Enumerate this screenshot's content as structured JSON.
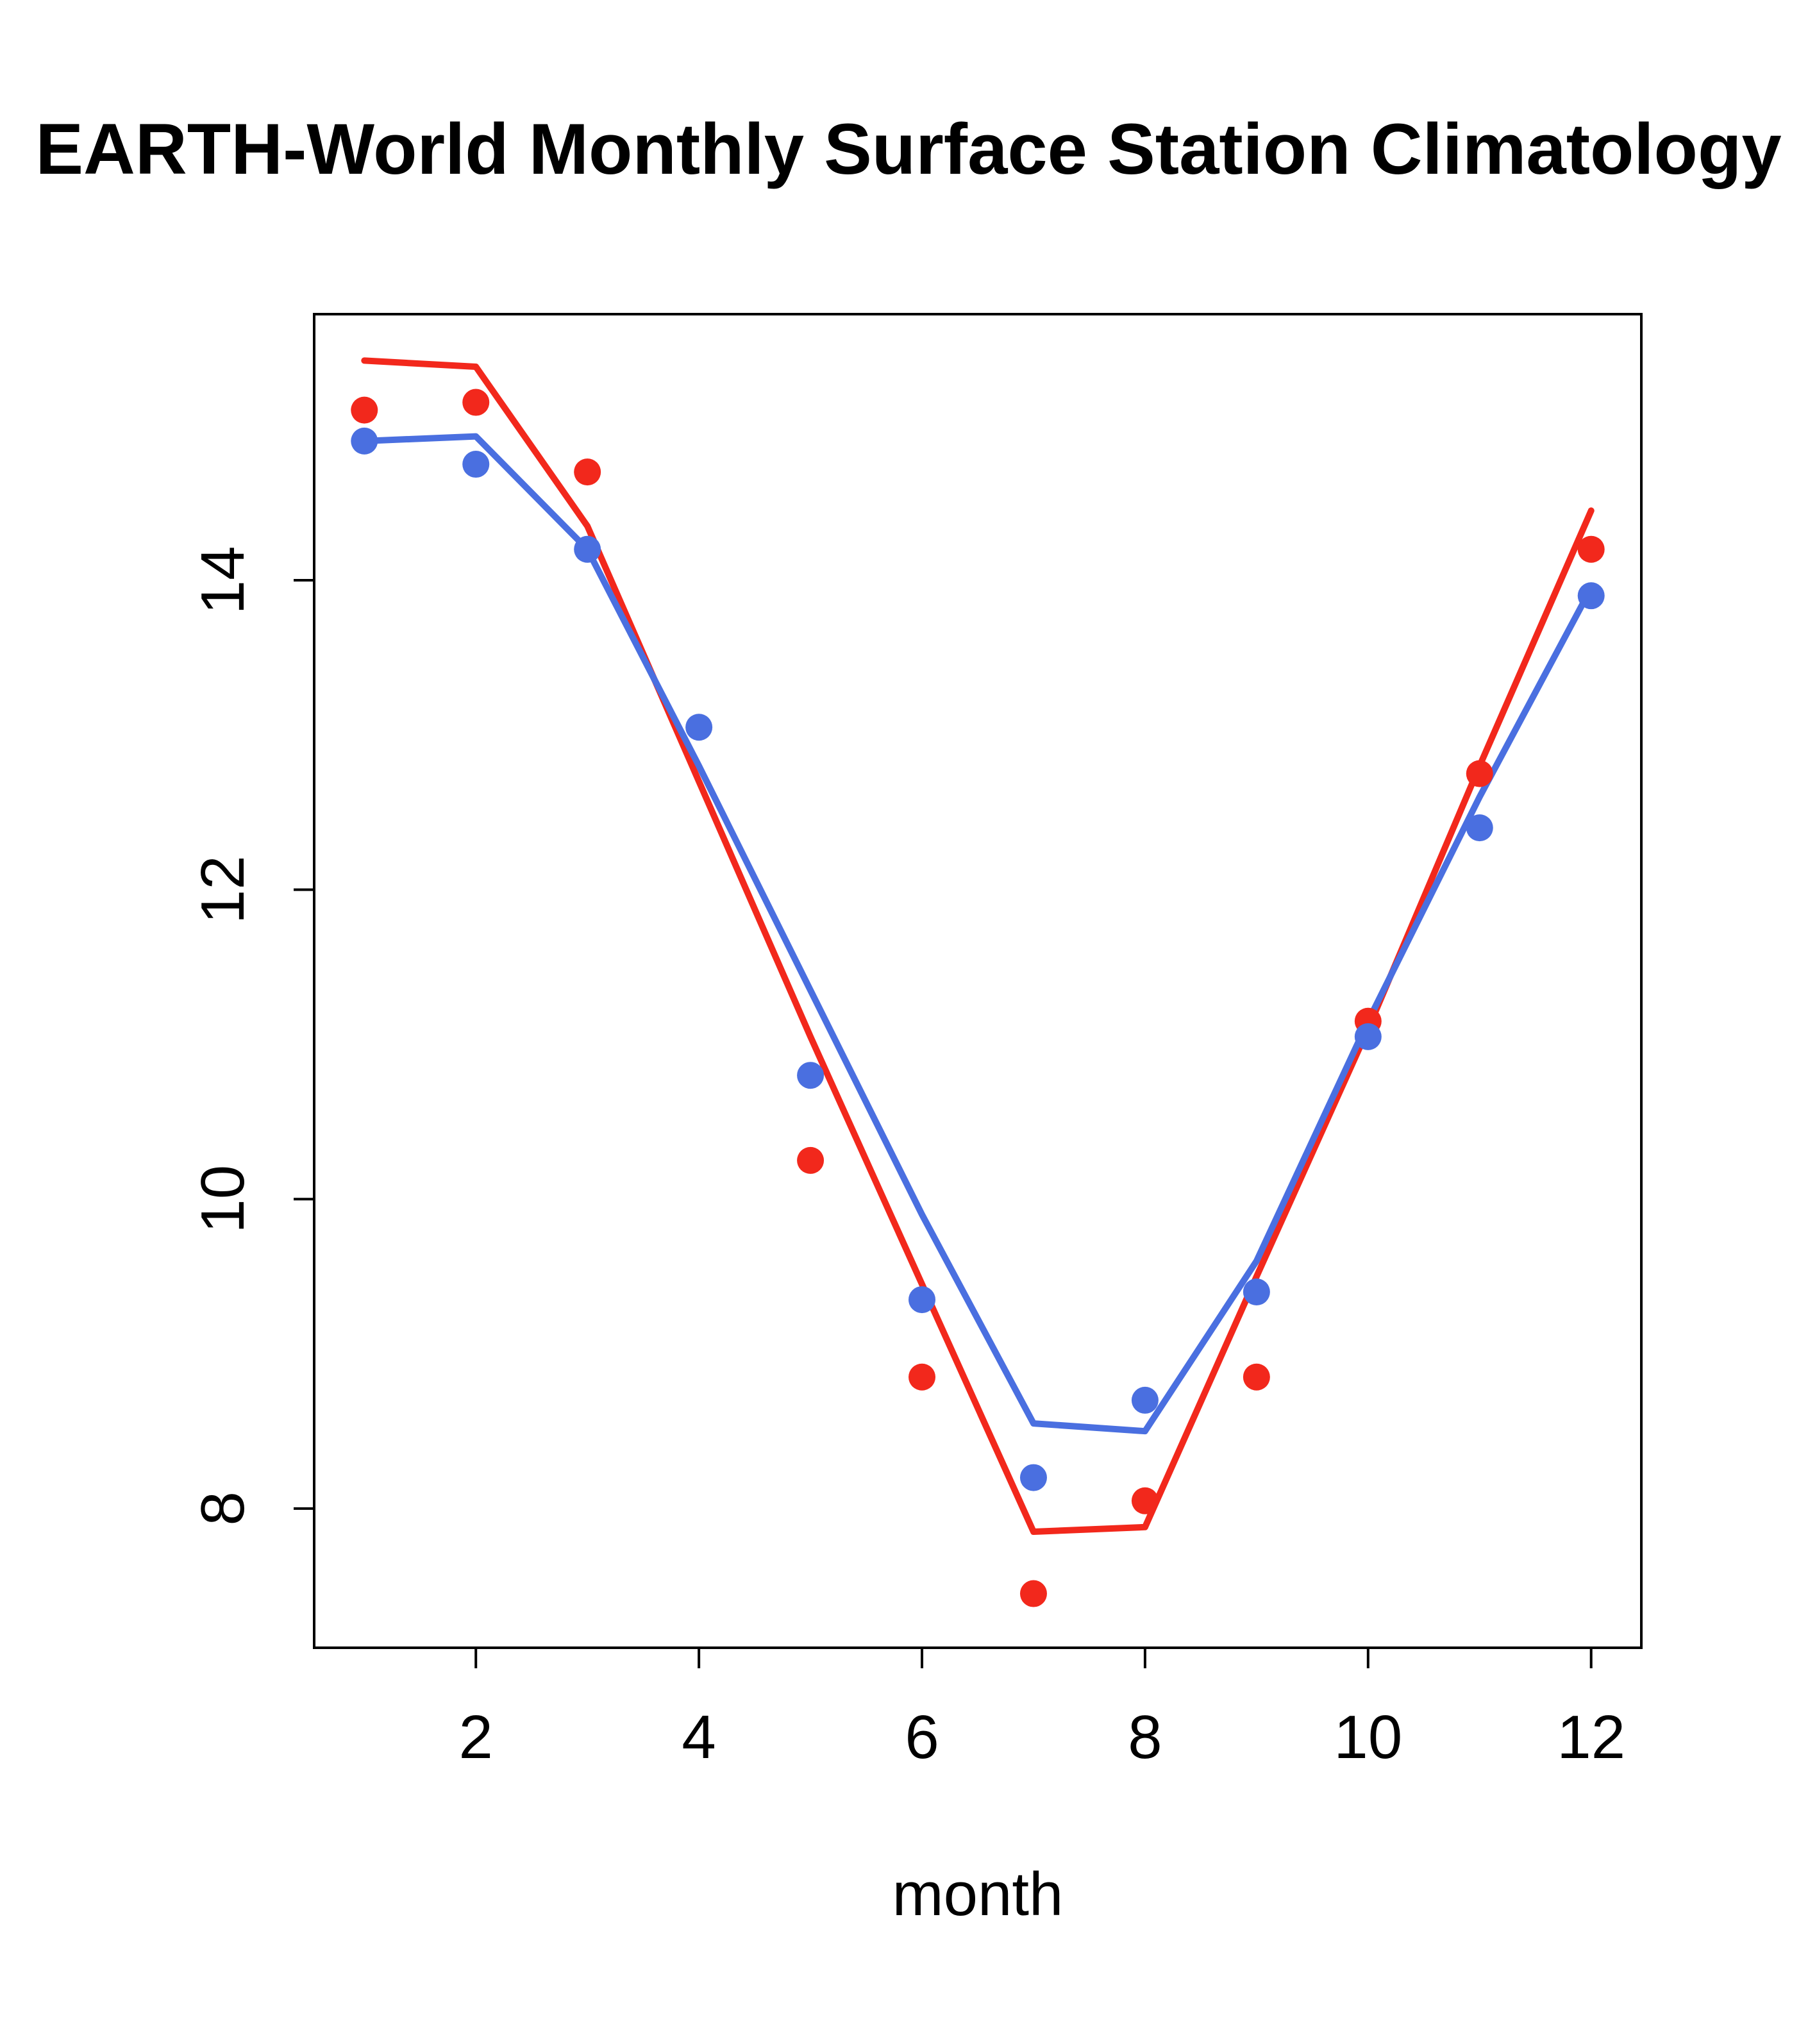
{
  "chart_data": {
    "type": "line",
    "title": "EARTH-World Monthly Surface Station Climatology",
    "xlabel": "month",
    "ylabel": "",
    "x": [
      1,
      2,
      3,
      4,
      5,
      6,
      7,
      8,
      9,
      10,
      11,
      12
    ],
    "x_ticks": [
      2,
      4,
      6,
      8,
      10,
      12
    ],
    "y_ticks": [
      8,
      10,
      12,
      14
    ],
    "xlim": [
      0.55,
      12.45
    ],
    "ylim": [
      7.1,
      15.72
    ],
    "grid": false,
    "colors": {
      "red_series": "#f2281c",
      "blue_series": "#4a6fe0",
      "axis": "#000000",
      "background": "#ffffff"
    },
    "series": [
      {
        "name": "red-fit-line",
        "type": "line",
        "color": "#f2281c",
        "width": 10,
        "values": [
          15.42,
          15.38,
          14.35,
          12.7,
          11.05,
          9.45,
          7.85,
          7.88,
          9.5,
          11.1,
          12.8,
          14.45
        ]
      },
      {
        "name": "blue-fit-line",
        "type": "line",
        "color": "#4a6fe0",
        "width": 10,
        "values": [
          14.9,
          14.93,
          14.2,
          12.8,
          11.35,
          9.9,
          8.55,
          8.5,
          9.6,
          11.15,
          12.6,
          13.95
        ]
      },
      {
        "name": "red-monthly-points",
        "type": "points",
        "color": "#f2281c",
        "values": [
          15.1,
          15.15,
          14.7,
          null,
          10.25,
          8.85,
          7.45,
          8.05,
          8.85,
          11.15,
          12.75,
          14.2
        ]
      },
      {
        "name": "blue-monthly-points",
        "type": "points",
        "color": "#4a6fe0",
        "values": [
          14.9,
          14.75,
          14.2,
          13.05,
          10.8,
          9.35,
          8.2,
          8.7,
          9.4,
          11.05,
          12.4,
          13.9
        ]
      }
    ]
  }
}
